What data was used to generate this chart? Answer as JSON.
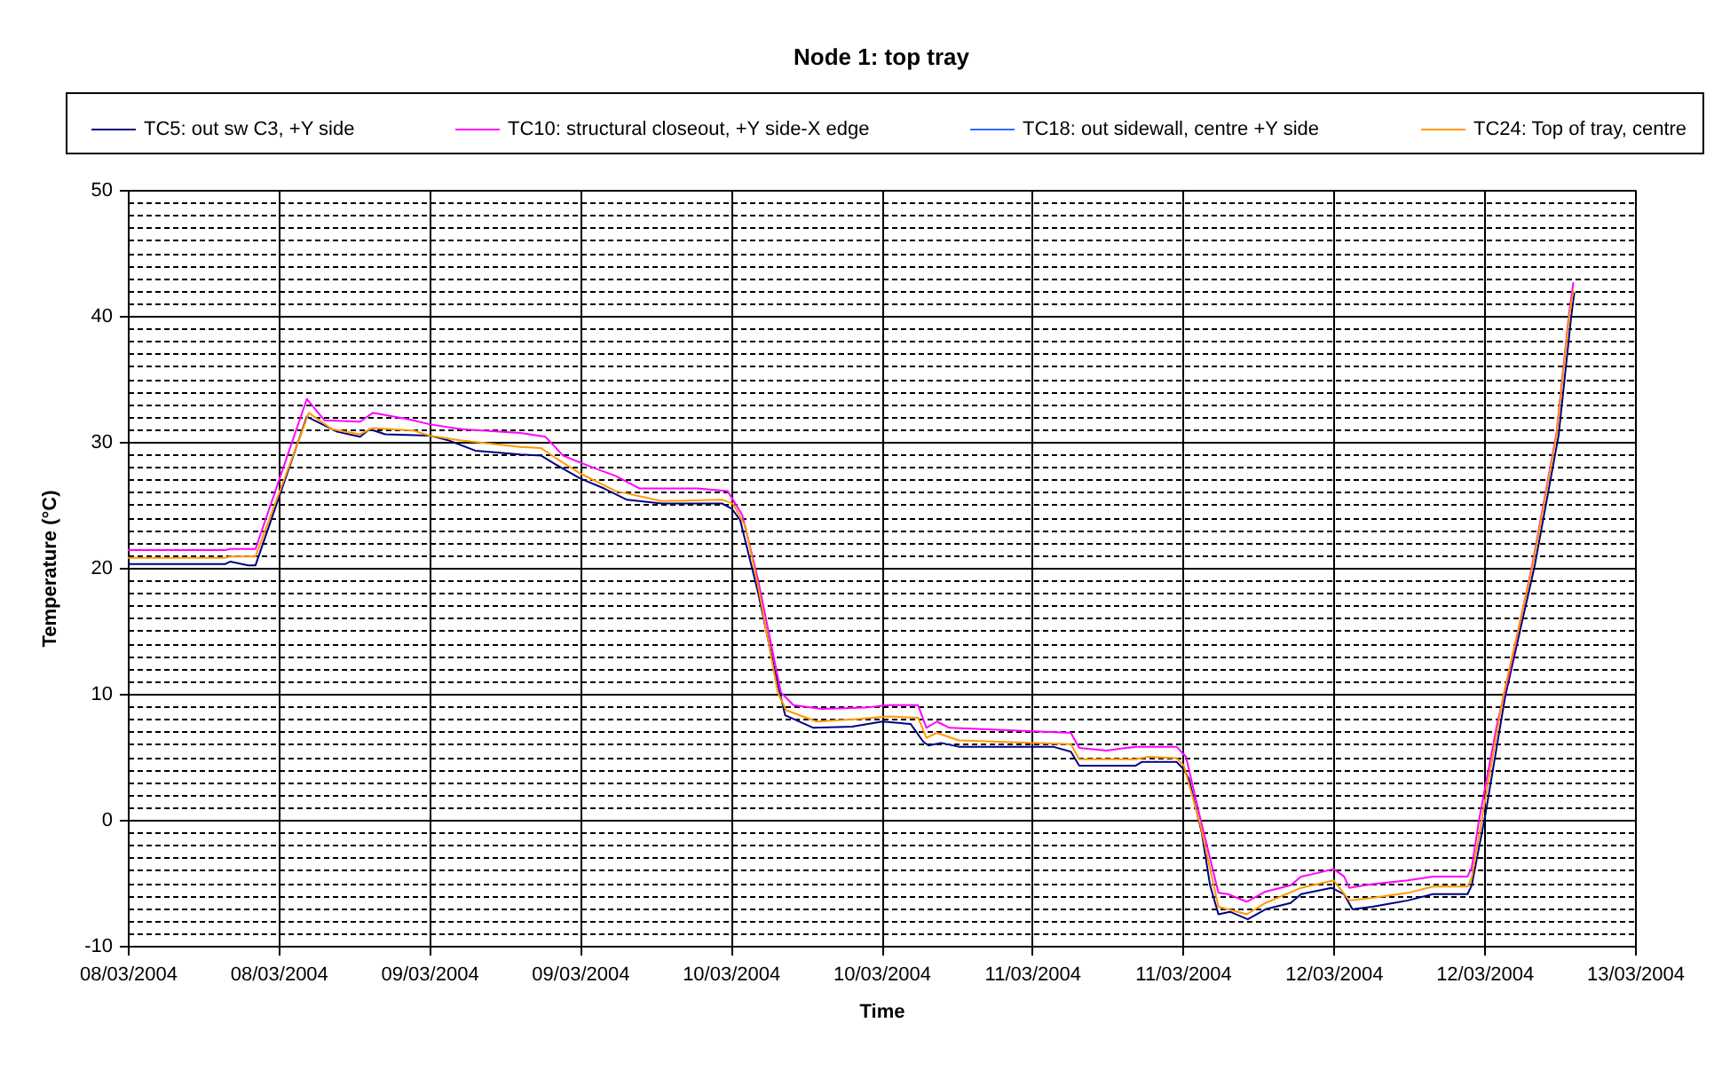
{
  "chart_data": {
    "type": "line",
    "title": "Node 1: top tray",
    "xlabel": "Time",
    "ylabel": "Temperature (°C)",
    "xlim": [
      "2004-03-08T00:00",
      "2004-03-13T00:00"
    ],
    "xticks": [
      {
        "value": "2004-03-08T00:00",
        "label": "08/03/2004"
      },
      {
        "value": "2004-03-08T12:00",
        "label": "08/03/2004"
      },
      {
        "value": "2004-03-09T00:00",
        "label": "09/03/2004"
      },
      {
        "value": "2004-03-09T12:00",
        "label": "09/03/2004"
      },
      {
        "value": "2004-03-10T00:00",
        "label": "10/03/2004"
      },
      {
        "value": "2004-03-10T12:00",
        "label": "10/03/2004"
      },
      {
        "value": "2004-03-11T00:00",
        "label": "11/03/2004"
      },
      {
        "value": "2004-03-11T12:00",
        "label": "11/03/2004"
      },
      {
        "value": "2004-03-12T00:00",
        "label": "12/03/2004"
      },
      {
        "value": "2004-03-12T12:00",
        "label": "12/03/2004"
      },
      {
        "value": "2004-03-13T00:00",
        "label": "13/03/2004"
      }
    ],
    "ylim": [
      -10,
      50
    ],
    "yticks": [
      -10,
      {
        "value": -9,
        "label": null
      },
      {
        "value": -8,
        "label": null
      },
      {
        "value": -7,
        "label": null
      },
      {
        "value": -6,
        "label": null
      },
      {
        "value": -5,
        "label": null
      },
      {
        "value": -4,
        "label": null
      },
      {
        "value": -3,
        "label": null
      },
      {
        "value": -2,
        "label": null
      },
      {
        "value": -1,
        "label": null
      },
      0,
      {
        "value": 1,
        "label": null
      },
      {
        "value": 2,
        "label": null
      },
      {
        "value": 3,
        "label": null
      },
      {
        "value": 4,
        "label": null
      },
      {
        "value": 5,
        "label": null
      },
      {
        "value": 6,
        "label": null
      },
      {
        "value": 7,
        "label": null
      },
      {
        "value": 8,
        "label": null
      },
      {
        "value": 9,
        "label": null
      },
      10,
      {
        "value": 11,
        "label": null
      },
      {
        "value": 12,
        "label": null
      },
      {
        "value": 13,
        "label": null
      },
      {
        "value": 14,
        "label": null
      },
      {
        "value": 15,
        "label": null
      },
      {
        "value": 16,
        "label": null
      },
      {
        "value": 17,
        "label": null
      },
      {
        "value": 18,
        "label": null
      },
      {
        "value": 19,
        "label": null
      },
      20,
      {
        "value": 21,
        "label": null
      },
      {
        "value": 22,
        "label": null
      },
      {
        "value": 23,
        "label": null
      },
      {
        "value": 24,
        "label": null
      },
      {
        "value": 25,
        "label": null
      },
      {
        "value": 26,
        "label": null
      },
      {
        "value": 27,
        "label": null
      },
      {
        "value": 28,
        "label": null
      },
      {
        "value": 29,
        "label": null
      },
      30,
      {
        "value": 31,
        "label": null
      },
      {
        "value": 32,
        "label": null
      },
      {
        "value": 33,
        "label": null
      },
      {
        "value": 34,
        "label": null
      },
      {
        "value": 35,
        "label": null
      },
      {
        "value": 36,
        "label": null
      },
      {
        "value": 37,
        "label": null
      },
      {
        "value": 38,
        "label": null
      },
      {
        "value": 39,
        "label": null
      },
      40,
      {
        "value": 41,
        "label": null
      },
      {
        "value": 42,
        "label": null
      },
      {
        "value": 43,
        "label": null
      },
      {
        "value": 44,
        "label": null
      },
      {
        "value": 45,
        "label": null
      },
      {
        "value": 46,
        "label": null
      },
      {
        "value": 47,
        "label": null
      },
      {
        "value": 48,
        "label": null
      },
      {
        "value": 49,
        "label": null
      },
      50
    ],
    "grid": true,
    "legend": "top",
    "line_style": "solid",
    "series": [
      {
        "name": "TC5: out sw C3, +Y side",
        "color": "#000080",
        "x": [
          "2004-03-08T00:00",
          "2004-03-08T07:45",
          "2004-03-08T08:10",
          "2004-03-08T09:35",
          "2004-03-08T10:10",
          "2004-03-08T14:15",
          "2004-03-08T16:40",
          "2004-03-08T18:30",
          "2004-03-08T19:15",
          "2004-03-08T20:30",
          "2004-03-09T00:00",
          "2004-03-09T01:35",
          "2004-03-09T03:40",
          "2004-03-09T07:15",
          "2004-03-09T08:55",
          "2004-03-09T10:05",
          "2004-03-09T12:00",
          "2004-03-09T13:55",
          "2004-03-09T15:45",
          "2004-03-09T18:30",
          "2004-03-09T23:20",
          "2004-03-10T00:05",
          "2004-03-10T00:45",
          "2004-03-10T02:10",
          "2004-03-10T03:35",
          "2004-03-10T04:20",
          "2004-03-10T06:35",
          "2004-03-10T09:40",
          "2004-03-10T12:05",
          "2004-03-10T14:20",
          "2004-03-10T15:20",
          "2004-03-10T15:45",
          "2004-03-10T16:45",
          "2004-03-10T18:10",
          "2004-03-11T01:40",
          "2004-03-11T03:05",
          "2004-03-11T03:45",
          "2004-03-11T08:15",
          "2004-03-11T08:45",
          "2004-03-11T11:30",
          "2004-03-11T12:05",
          "2004-03-11T12:30",
          "2004-03-11T13:30",
          "2004-03-11T14:10",
          "2004-03-11T14:50",
          "2004-03-11T15:45",
          "2004-03-11T17:10",
          "2004-03-11T18:35",
          "2004-03-11T20:35",
          "2004-03-11T21:25",
          "2004-03-11T23:50",
          "2004-03-12T00:50",
          "2004-03-12T01:30",
          "2004-03-12T03:05",
          "2004-03-12T05:55",
          "2004-03-12T07:55",
          "2004-03-12T10:40",
          "2004-03-12T11:00",
          "2004-03-12T12:05",
          "2004-03-12T13:40",
          "2004-03-12T16:00",
          "2004-03-12T17:55",
          "2004-03-12T18:55",
          "2004-03-12T19:10"
        ],
        "values": [
          20.3,
          20.3,
          20.5,
          20.2,
          20.2,
          32.0,
          30.8,
          30.4,
          31.0,
          30.6,
          30.5,
          30.1,
          29.3,
          29.0,
          28.9,
          28.2,
          27.1,
          26.3,
          25.4,
          25.1,
          25.1,
          24.7,
          23.8,
          18.1,
          11.5,
          8.3,
          7.3,
          7.4,
          7.8,
          7.6,
          6.2,
          5.9,
          6.1,
          5.8,
          5.8,
          5.4,
          4.3,
          4.3,
          4.6,
          4.6,
          4.0,
          3.2,
          -1.0,
          -5.2,
          -7.5,
          -7.3,
          -7.9,
          -7.1,
          -6.6,
          -5.9,
          -5.4,
          -5.9,
          -7.1,
          -6.9,
          -6.4,
          -5.9,
          -5.9,
          -5.2,
          0.4,
          9.8,
          20.1,
          30.5,
          39.9,
          41.8
        ]
      },
      {
        "name": "TC10: structural closeout, +Y side-X edge",
        "color": "#ff00ff",
        "x": [
          "2004-03-08T00:00",
          "2004-03-08T07:45",
          "2004-03-08T08:10",
          "2004-03-08T10:10",
          "2004-03-08T14:15",
          "2004-03-08T15:40",
          "2004-03-08T18:30",
          "2004-03-08T19:30",
          "2004-03-08T22:20",
          "2004-03-09T00:00",
          "2004-03-09T02:35",
          "2004-03-09T07:15",
          "2004-03-09T09:15",
          "2004-03-09T10:40",
          "2004-03-09T12:55",
          "2004-03-09T14:50",
          "2004-03-09T16:45",
          "2004-03-09T21:20",
          "2004-03-09T23:45",
          "2004-03-10T00:55",
          "2004-03-10T02:10",
          "2004-03-10T04:00",
          "2004-03-10T05:00",
          "2004-03-10T07:15",
          "2004-03-10T10:40",
          "2004-03-10T12:30",
          "2004-03-10T14:55",
          "2004-03-10T15:35",
          "2004-03-10T16:25",
          "2004-03-10T17:25",
          "2004-03-11T03:05",
          "2004-03-11T03:45",
          "2004-03-11T05:55",
          "2004-03-11T08:15",
          "2004-03-11T11:30",
          "2004-03-11T12:15",
          "2004-03-11T13:25",
          "2004-03-11T14:50",
          "2004-03-11T15:35",
          "2004-03-11T17:05",
          "2004-03-11T18:35",
          "2004-03-11T20:35",
          "2004-03-11T21:25",
          "2004-03-11T22:50",
          "2004-03-12T00:00",
          "2004-03-12T00:50",
          "2004-03-12T01:15",
          "2004-03-12T03:05",
          "2004-03-12T05:55",
          "2004-03-12T07:55",
          "2004-03-12T10:40",
          "2004-03-12T11:00",
          "2004-03-12T11:35",
          "2004-03-12T13:00",
          "2004-03-12T14:00",
          "2004-03-12T15:50",
          "2004-03-12T17:45",
          "2004-03-12T18:45",
          "2004-03-12T19:05"
        ],
        "values": [
          21.4,
          21.4,
          21.5,
          21.5,
          33.4,
          31.7,
          31.6,
          32.3,
          31.8,
          31.4,
          31.0,
          30.7,
          30.4,
          28.9,
          28.0,
          27.3,
          26.3,
          26.3,
          26.1,
          24.2,
          19.1,
          10.1,
          9.1,
          8.8,
          8.9,
          9.1,
          9.1,
          7.3,
          7.8,
          7.3,
          6.9,
          5.7,
          5.5,
          5.8,
          5.8,
          5.0,
          0.0,
          -5.8,
          -5.9,
          -6.5,
          -5.7,
          -5.2,
          -4.5,
          -4.2,
          -3.9,
          -4.5,
          -5.4,
          -5.1,
          -4.8,
          -4.5,
          -4.5,
          -3.8,
          0.0,
          7.5,
          11.7,
          20.3,
          30.7,
          40.2,
          42.6
        ]
      },
      {
        "name": "TC18: out sidewall, centre +Y side",
        "color": "#3366ff"
      },
      {
        "name": "TC24: Top of tray, centre",
        "color": "#ff9900",
        "x": [
          "2004-03-08T00:00",
          "2004-03-08T07:45",
          "2004-03-08T08:10",
          "2004-03-08T10:10",
          "2004-03-08T14:25",
          "2004-03-08T16:15",
          "2004-03-08T18:30",
          "2004-03-08T19:30",
          "2004-03-08T22:45",
          "2004-03-09T00:00",
          "2004-03-09T02:35",
          "2004-03-09T07:15",
          "2004-03-09T08:55",
          "2004-03-09T10:05",
          "2004-03-09T12:00",
          "2004-03-09T14:50",
          "2004-03-09T18:30",
          "2004-03-09T23:20",
          "2004-03-10T00:10",
          "2004-03-10T01:10",
          "2004-03-10T02:10",
          "2004-03-10T03:45",
          "2004-03-10T04:25",
          "2004-03-10T06:50",
          "2004-03-10T10:05",
          "2004-03-10T12:30",
          "2004-03-10T14:55",
          "2004-03-10T15:35",
          "2004-03-10T16:25",
          "2004-03-10T18:10",
          "2004-03-11T03:05",
          "2004-03-11T03:45",
          "2004-03-11T08:15",
          "2004-03-11T09:15",
          "2004-03-11T11:30",
          "2004-03-11T12:05",
          "2004-03-11T13:25",
          "2004-03-11T14:50",
          "2004-03-11T17:05",
          "2004-03-11T18:35",
          "2004-03-11T21:25",
          "2004-03-12T00:00",
          "2004-03-12T01:15",
          "2004-03-12T03:05",
          "2004-03-12T05:55",
          "2004-03-12T07:55",
          "2004-03-12T10:40",
          "2004-03-12T11:00",
          "2004-03-12T11:50",
          "2004-03-12T13:30",
          "2004-03-12T15:50",
          "2004-03-12T17:45",
          "2004-03-12T18:45",
          "2004-03-12T19:05"
        ],
        "values": [
          20.8,
          20.8,
          20.9,
          20.9,
          32.3,
          31.0,
          30.6,
          31.1,
          30.9,
          30.5,
          30.1,
          29.6,
          29.5,
          28.7,
          27.5,
          26.1,
          25.3,
          25.4,
          25.1,
          23.3,
          18.6,
          10.1,
          8.7,
          7.8,
          8.0,
          8.2,
          8.1,
          6.5,
          6.9,
          6.3,
          6.0,
          4.8,
          4.8,
          5.0,
          4.9,
          4.3,
          -0.5,
          -6.9,
          -7.5,
          -6.6,
          -5.4,
          -4.8,
          -6.4,
          -6.2,
          -5.8,
          -5.3,
          -5.3,
          -4.6,
          0.2,
          9.8,
          20.1,
          30.5,
          39.9,
          42.0
        ]
      }
    ]
  }
}
